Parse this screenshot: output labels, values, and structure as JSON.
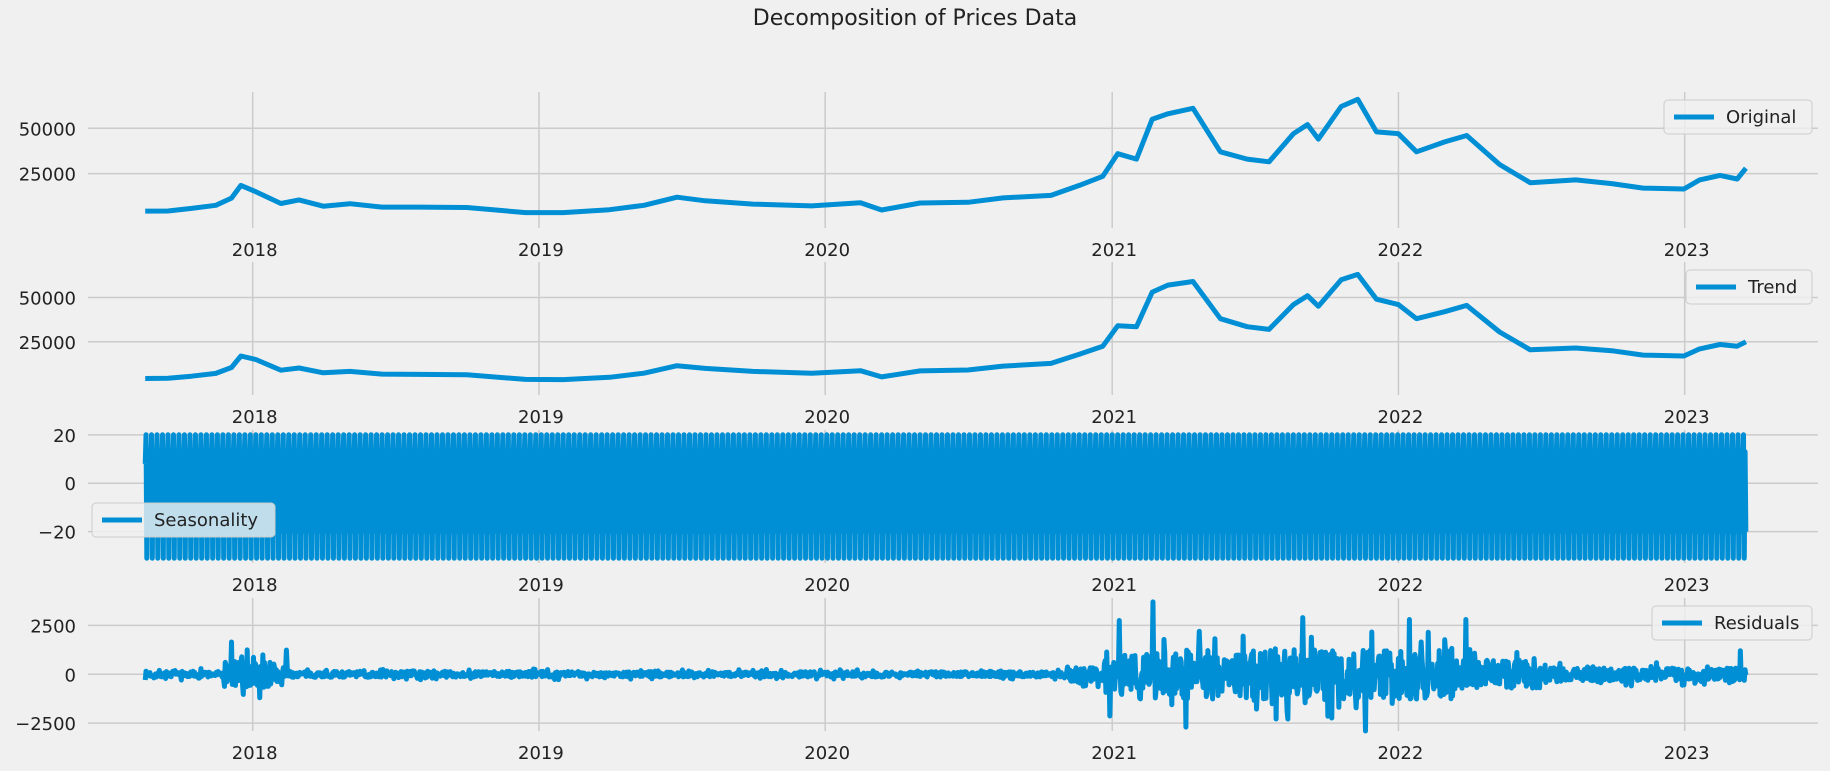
{
  "figure": {
    "title": "Decomposition of Prices Data"
  },
  "colors": {
    "line": "#008fd5",
    "grid": "#cbcbcb",
    "background": "#f0f0f0"
  },
  "chart_data": [
    {
      "type": "line",
      "name": "original",
      "legend": "Original",
      "legend_position": "top-right",
      "grid": true,
      "ylim": [
        -5000,
        70000
      ],
      "yticks": [
        25000,
        50000
      ],
      "yticklabels": [
        "25000",
        "50000"
      ],
      "xticks": [
        "2018-01-01",
        "2019-01-01",
        "2020-01-01",
        "2021-01-01",
        "2022-01-01",
        "2023-01-01"
      ],
      "xticklabels": [
        "2018",
        "2019",
        "2020",
        "2021",
        "2022",
        "2023"
      ],
      "x": [
        "2017-08-17",
        "2017-09-15",
        "2017-10-15",
        "2017-11-15",
        "2017-12-05",
        "2017-12-17",
        "2018-01-05",
        "2018-02-06",
        "2018-03-01",
        "2018-04-01",
        "2018-05-05",
        "2018-06-15",
        "2018-08-01",
        "2018-10-01",
        "2018-12-15",
        "2019-02-01",
        "2019-04-01",
        "2019-05-15",
        "2019-06-26",
        "2019-08-01",
        "2019-10-01",
        "2019-12-15",
        "2020-02-15",
        "2020-03-13",
        "2020-05-01",
        "2020-07-01",
        "2020-08-15",
        "2020-10-15",
        "2020-11-20",
        "2020-12-20",
        "2021-01-08",
        "2021-02-01",
        "2021-02-21",
        "2021-03-13",
        "2021-04-14",
        "2021-05-19",
        "2021-06-22",
        "2021-07-20",
        "2021-08-20",
        "2021-09-07",
        "2021-09-21",
        "2021-10-20",
        "2021-11-10",
        "2021-12-04",
        "2022-01-01",
        "2022-01-24",
        "2022-03-01",
        "2022-03-29",
        "2022-05-10",
        "2022-06-18",
        "2022-08-15",
        "2022-09-30",
        "2022-11-09",
        "2022-12-31",
        "2023-01-20",
        "2023-02-15",
        "2023-03-09",
        "2023-03-20"
      ],
      "values": [
        4300,
        4400,
        5800,
        7500,
        11500,
        18500,
        15000,
        8500,
        10500,
        7000,
        8400,
        6500,
        6500,
        6300,
        3500,
        3500,
        5100,
        7500,
        12000,
        10000,
        8200,
        7200,
        8900,
        4900,
        8800,
        9200,
        11600,
        13000,
        18500,
        23500,
        36000,
        33000,
        55000,
        58000,
        61000,
        37000,
        33000,
        31500,
        47000,
        52000,
        44000,
        62000,
        66000,
        48000,
        47000,
        37000,
        42500,
        46000,
        30000,
        20000,
        21500,
        19500,
        17000,
        16500,
        21500,
        24000,
        22000,
        28000
      ]
    },
    {
      "type": "line",
      "name": "trend",
      "legend": "Trend",
      "legend_position": "top-right",
      "grid": true,
      "ylim": [
        -5000,
        70000
      ],
      "yticks": [
        25000,
        50000
      ],
      "yticklabels": [
        "25000",
        "50000"
      ],
      "xticks": [
        "2018-01-01",
        "2019-01-01",
        "2020-01-01",
        "2021-01-01",
        "2022-01-01",
        "2023-01-01"
      ],
      "xticklabels": [
        "2018",
        "2019",
        "2020",
        "2021",
        "2022",
        "2023"
      ],
      "x": [
        "2017-08-17",
        "2017-09-15",
        "2017-10-15",
        "2017-11-15",
        "2017-12-05",
        "2017-12-17",
        "2018-01-05",
        "2018-02-06",
        "2018-03-01",
        "2018-04-01",
        "2018-05-05",
        "2018-06-15",
        "2018-08-01",
        "2018-10-01",
        "2018-12-15",
        "2019-02-01",
        "2019-04-01",
        "2019-05-15",
        "2019-06-26",
        "2019-08-01",
        "2019-10-01",
        "2019-12-15",
        "2020-02-15",
        "2020-03-13",
        "2020-05-01",
        "2020-07-01",
        "2020-08-15",
        "2020-10-15",
        "2020-11-20",
        "2020-12-20",
        "2021-01-08",
        "2021-02-01",
        "2021-02-21",
        "2021-03-13",
        "2021-04-14",
        "2021-05-19",
        "2021-06-22",
        "2021-07-20",
        "2021-08-20",
        "2021-09-07",
        "2021-09-21",
        "2021-10-20",
        "2021-11-10",
        "2021-12-04",
        "2022-01-01",
        "2022-01-24",
        "2022-03-01",
        "2022-03-29",
        "2022-05-10",
        "2022-06-18",
        "2022-08-15",
        "2022-09-30",
        "2022-11-09",
        "2022-12-31",
        "2023-01-20",
        "2023-02-15",
        "2023-03-09",
        "2023-03-20"
      ],
      "values": [
        4300,
        4400,
        5600,
        7200,
        10500,
        17000,
        15000,
        9000,
        10200,
        7500,
        8300,
        6800,
        6600,
        6400,
        3800,
        3700,
        5000,
        7300,
        11500,
        10000,
        8300,
        7300,
        8700,
        5200,
        8600,
        9100,
        11300,
        12800,
        18000,
        22500,
        34000,
        33500,
        53000,
        57000,
        59000,
        38000,
        33500,
        32000,
        46000,
        51000,
        45000,
        60000,
        63000,
        49000,
        46000,
        38000,
        42000,
        45500,
        30500,
        20500,
        21500,
        20000,
        17500,
        17000,
        21000,
        23500,
        22500,
        25000
      ]
    },
    {
      "type": "line",
      "name": "seasonality",
      "legend": "Seasonality",
      "legend_position": "lower-left",
      "grid": true,
      "ylim": [
        -33,
        22
      ],
      "yticks": [
        -20,
        0,
        20
      ],
      "yticklabels": [
        "−20",
        "0",
        "20"
      ],
      "xticks": [
        "2018-01-01",
        "2019-01-01",
        "2020-01-01",
        "2021-01-01",
        "2022-01-01",
        "2023-01-01"
      ],
      "xticklabels": [
        "2018",
        "2019",
        "2020",
        "2021",
        "2022",
        "2023"
      ],
      "x_start": "2017-08-17",
      "x_end": "2023-03-20",
      "period_days": 7,
      "pattern": [
        8,
        20,
        -31,
        13,
        -20,
        4,
        6
      ]
    },
    {
      "type": "line",
      "name": "residuals",
      "legend": "Residuals",
      "legend_position": "top-right",
      "grid": true,
      "ylim": [
        -2900,
        3900
      ],
      "yticks": [
        -2500,
        0,
        2500
      ],
      "yticklabels": [
        "−2500",
        "0",
        "2500"
      ],
      "xticks": [
        "2018-01-01",
        "2019-01-01",
        "2020-01-01",
        "2021-01-01",
        "2022-01-01",
        "2023-01-01"
      ],
      "xticklabels": [
        "2018",
        "2019",
        "2020",
        "2021",
        "2022",
        "2023"
      ],
      "x_start": "2017-08-17",
      "x_end": "2023-03-20",
      "amplitude_envelope": [
        {
          "from": "2017-08-17",
          "to": "2017-11-25",
          "amplitude": 300
        },
        {
          "from": "2017-11-25",
          "to": "2018-02-15",
          "amplitude": 1300
        },
        {
          "from": "2018-02-15",
          "to": "2019-03-01",
          "amplitude": 280
        },
        {
          "from": "2019-03-01",
          "to": "2020-11-01",
          "amplitude": 250
        },
        {
          "from": "2020-11-01",
          "to": "2020-12-20",
          "amplitude": 700
        },
        {
          "from": "2020-12-20",
          "to": "2022-03-15",
          "amplitude": 2300
        },
        {
          "from": "2022-03-15",
          "to": "2022-07-01",
          "amplitude": 1300
        },
        {
          "from": "2022-07-01",
          "to": "2023-03-20",
          "amplitude": 600
        }
      ],
      "peaks": [
        {
          "x": "2017-12-05",
          "value": 1650
        },
        {
          "x": "2018-01-10",
          "value": -1200
        },
        {
          "x": "2021-01-10",
          "value": 2750
        },
        {
          "x": "2021-02-22",
          "value": 3700
        },
        {
          "x": "2021-04-05",
          "value": -2700
        },
        {
          "x": "2021-09-01",
          "value": 2900
        },
        {
          "x": "2021-11-20",
          "value": -2900
        },
        {
          "x": "2022-01-15",
          "value": 2800
        },
        {
          "x": "2022-03-28",
          "value": 2800
        },
        {
          "x": "2023-03-13",
          "value": 1200
        }
      ]
    }
  ]
}
